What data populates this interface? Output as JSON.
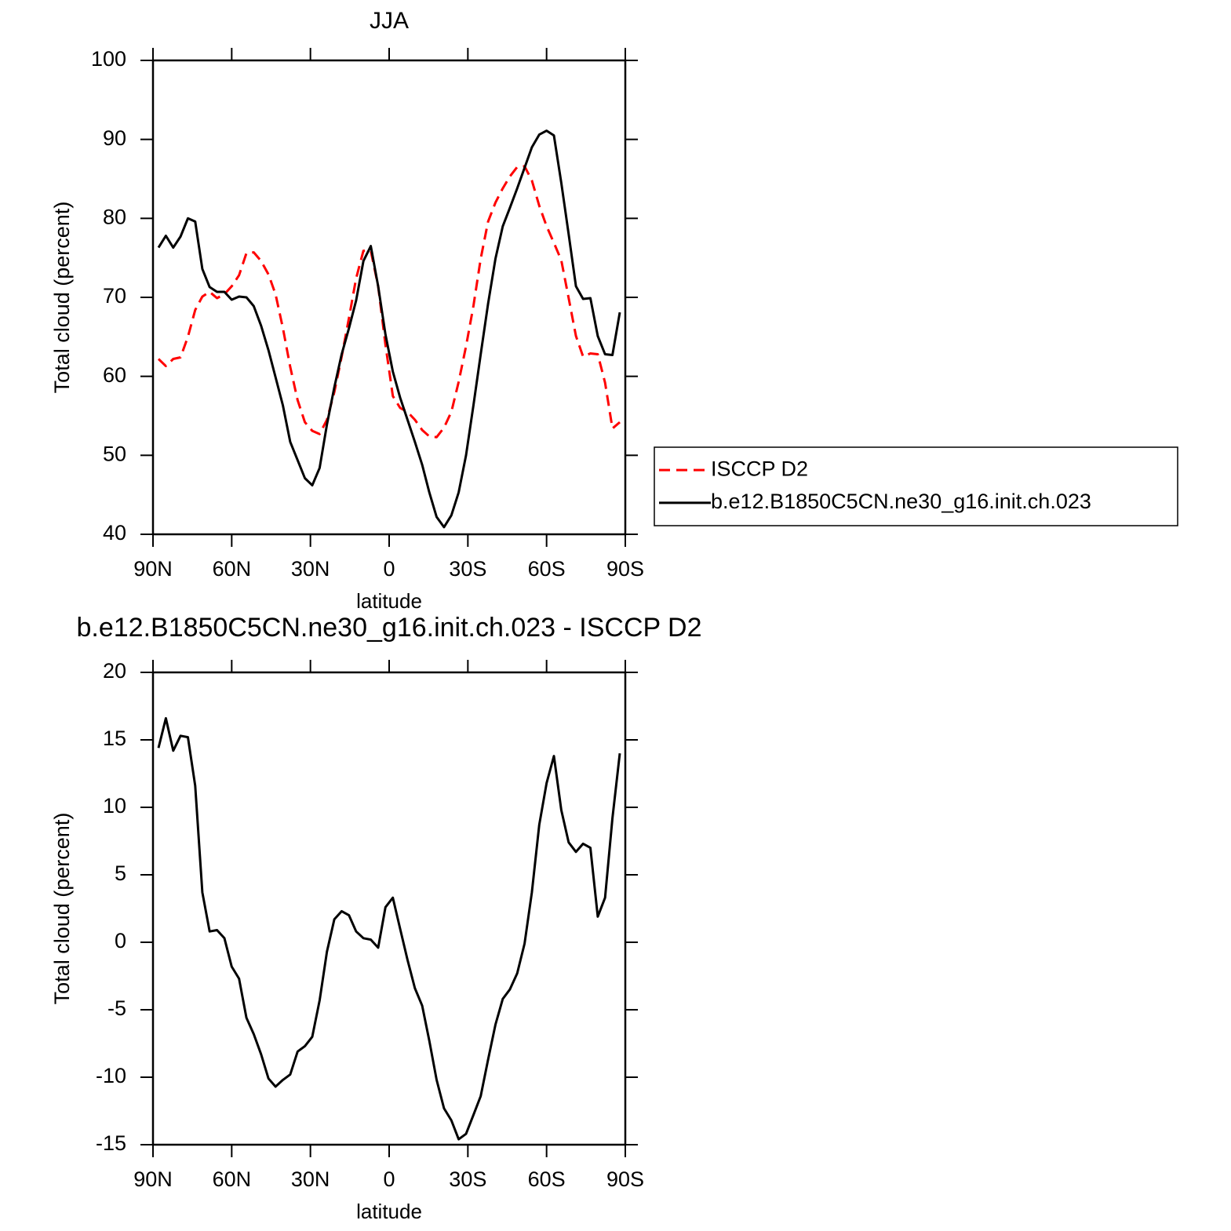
{
  "chart_data": [
    {
      "type": "line",
      "title": "JJA",
      "xlabel": "latitude",
      "ylabel": "Total cloud (percent)",
      "x": [
        87.9,
        85.1,
        82.3,
        79.5,
        76.7,
        73.9,
        71.2,
        68.4,
        65.6,
        62.8,
        60.0,
        57.2,
        54.4,
        51.6,
        48.8,
        46.0,
        43.3,
        40.5,
        37.7,
        34.9,
        32.1,
        29.3,
        26.5,
        23.7,
        20.9,
        18.1,
        15.3,
        12.6,
        9.8,
        7.0,
        4.2,
        1.4,
        -1.4,
        -4.2,
        -7.0,
        -9.8,
        -12.6,
        -15.3,
        -18.1,
        -20.9,
        -23.7,
        -26.5,
        -29.3,
        -32.1,
        -34.9,
        -37.7,
        -40.5,
        -43.3,
        -46.0,
        -48.8,
        -51.6,
        -54.4,
        -57.2,
        -60.0,
        -62.8,
        -65.6,
        -68.4,
        -71.2,
        -73.9,
        -76.7,
        -79.5,
        -82.3,
        -85.1,
        -87.9
      ],
      "xlim": [
        90,
        -90
      ],
      "xticks": [
        {
          "value": 90,
          "label": "90N"
        },
        {
          "value": 60,
          "label": "60N"
        },
        {
          "value": 30,
          "label": "30N"
        },
        0,
        {
          "value": -30,
          "label": "30S"
        },
        {
          "value": -60,
          "label": "60S"
        },
        {
          "value": -90,
          "label": "90S"
        }
      ],
      "ylim": [
        40,
        100
      ],
      "yticks": [
        40,
        50,
        60,
        70,
        80,
        90,
        100
      ],
      "legend": "right",
      "series": [
        {
          "name": "ISCCP D2",
          "color": "#ff0000",
          "dash": true,
          "values": [
            62.2,
            61.3,
            62.2,
            62.4,
            65.0,
            68.4,
            70.1,
            70.7,
            69.9,
            70.4,
            71.4,
            72.8,
            75.6,
            75.7,
            74.6,
            72.9,
            70.4,
            66.1,
            61.2,
            57.0,
            54.2,
            53.1,
            52.7,
            54.5,
            58.0,
            62.5,
            67.4,
            72.4,
            75.9,
            75.9,
            71.4,
            64.0,
            57.5,
            56.0,
            55.5,
            54.5,
            53.2,
            52.4,
            52.3,
            53.5,
            55.5,
            59.3,
            63.8,
            68.9,
            74.9,
            79.6,
            82.0,
            83.8,
            85.3,
            86.5,
            86.6,
            84.8,
            81.6,
            79.0,
            76.9,
            74.7,
            69.9,
            65.1,
            62.5,
            62.9,
            62.8,
            59.2,
            53.4,
            54.2
          ]
        },
        {
          "name": "b.e12.B1850C5CN.ne30_g16.init.ch.023",
          "color": "#000000",
          "dash": false,
          "values": [
            76.3,
            77.8,
            76.3,
            77.7,
            80.0,
            79.6,
            73.6,
            71.3,
            70.7,
            70.7,
            69.7,
            70.1,
            70.0,
            68.9,
            66.4,
            63.3,
            59.9,
            56.3,
            51.7,
            49.4,
            47.1,
            46.2,
            48.4,
            53.9,
            58.6,
            62.8,
            66.1,
            69.6,
            74.6,
            76.5,
            71.4,
            65.3,
            60.6,
            57.3,
            54.5,
            51.7,
            48.8,
            45.3,
            42.2,
            40.9,
            42.4,
            45.3,
            50.0,
            56.3,
            62.8,
            69.2,
            74.9,
            79.0,
            81.3,
            83.8,
            86.4,
            89.0,
            90.6,
            91.1,
            90.5,
            84.5,
            78.0,
            71.4,
            69.8,
            69.9,
            65.1,
            62.8,
            62.7,
            68.1
          ]
        }
      ]
    },
    {
      "type": "line",
      "title": "b.e12.B1850C5CN.ne30_g16.init.ch.023 - ISCCP D2",
      "xlabel": "latitude",
      "ylabel": "Total cloud (percent)",
      "x": [
        87.9,
        85.1,
        82.3,
        79.5,
        76.7,
        73.9,
        71.2,
        68.4,
        65.6,
        62.8,
        60.0,
        57.2,
        54.4,
        51.6,
        48.8,
        46.0,
        43.3,
        40.5,
        37.7,
        34.9,
        32.1,
        29.3,
        26.5,
        23.7,
        20.9,
        18.1,
        15.3,
        12.6,
        9.8,
        7.0,
        4.2,
        1.4,
        -1.4,
        -4.2,
        -7.0,
        -9.8,
        -12.6,
        -15.3,
        -18.1,
        -20.9,
        -23.7,
        -26.5,
        -29.3,
        -32.1,
        -34.9,
        -37.7,
        -40.5,
        -43.3,
        -46.0,
        -48.8,
        -51.6,
        -54.4,
        -57.2,
        -60.0,
        -62.8,
        -65.6,
        -68.4,
        -71.2,
        -73.9,
        -76.7,
        -79.5,
        -82.3,
        -85.1,
        -87.9
      ],
      "xlim": [
        90,
        -90
      ],
      "xticks": [
        {
          "value": 90,
          "label": "90N"
        },
        {
          "value": 60,
          "label": "60N"
        },
        {
          "value": 30,
          "label": "30N"
        },
        0,
        {
          "value": -30,
          "label": "30S"
        },
        {
          "value": -60,
          "label": "60S"
        },
        {
          "value": -90,
          "label": "90S"
        }
      ],
      "ylim": [
        -15,
        20
      ],
      "yticks": [
        -15,
        -10,
        -5,
        0,
        5,
        10,
        15,
        20
      ],
      "series": [
        {
          "color": "#000000",
          "dash": false,
          "values": [
            14.4,
            16.6,
            14.2,
            15.3,
            15.2,
            11.6,
            3.7,
            0.8,
            0.9,
            0.3,
            -1.8,
            -2.7,
            -5.6,
            -6.8,
            -8.3,
            -10.1,
            -10.7,
            -10.2,
            -9.8,
            -8.1,
            -7.7,
            -7.0,
            -4.3,
            -0.7,
            1.7,
            2.3,
            2.0,
            0.8,
            0.3,
            0.2,
            -0.4,
            2.6,
            3.3,
            1.0,
            -1.3,
            -3.4,
            -4.7,
            -7.3,
            -10.2,
            -12.3,
            -13.2,
            -14.6,
            -14.2,
            -12.8,
            -11.4,
            -8.7,
            -6.1,
            -4.2,
            -3.5,
            -2.3,
            -0.1,
            3.7,
            8.7,
            11.8,
            13.8,
            9.8,
            7.4,
            6.7,
            7.3,
            7.0,
            1.9,
            3.3,
            9.2,
            14.0
          ]
        }
      ]
    }
  ]
}
